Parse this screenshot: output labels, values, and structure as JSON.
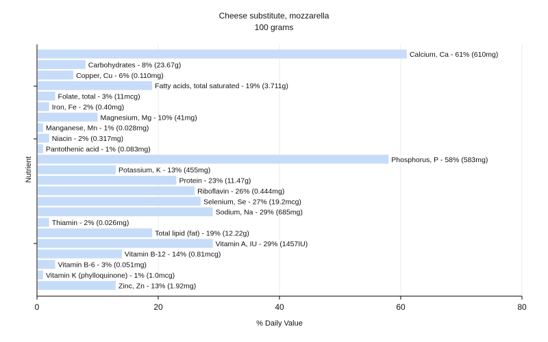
{
  "chart_data": {
    "type": "bar",
    "orientation": "horizontal",
    "title": "Cheese substitute, mozzarella",
    "subtitle": "100 grams",
    "xlabel": "% Daily Value",
    "ylabel": "Nutrient",
    "xlim": [
      0,
      80
    ],
    "xticks": [
      0,
      20,
      40,
      60,
      80
    ],
    "grid": true,
    "bar_color": "#c6dcf9",
    "categories": [
      "Calcium, Ca - 61% (610mg)",
      "Carbohydrates - 8% (23.67g)",
      "Copper, Cu - 6% (0.110mg)",
      "Fatty acids, total saturated - 19% (3.711g)",
      "Folate, total - 3% (11mcg)",
      "Iron, Fe - 2% (0.40mg)",
      "Magnesium, Mg - 10% (41mg)",
      "Manganese, Mn - 1% (0.028mg)",
      "Niacin - 2% (0.317mg)",
      "Pantothenic acid - 1% (0.083mg)",
      "Phosphorus, P - 58% (583mg)",
      "Potassium, K - 13% (455mg)",
      "Protein - 23% (11.47g)",
      "Riboflavin - 26% (0.444mg)",
      "Selenium, Se - 27% (19.2mcg)",
      "Sodium, Na - 29% (685mg)",
      "Thiamin - 2% (0.026mg)",
      "Total lipid (fat) - 19% (12.22g)",
      "Vitamin A, IU - 29% (1457IU)",
      "Vitamin B-12 - 14% (0.81mcg)",
      "Vitamin B-6 - 3% (0.051mg)",
      "Vitamin K (phylloquinone) - 1% (1.0mcg)",
      "Zinc, Zn - 13% (1.92mg)"
    ],
    "values": [
      61,
      8,
      6,
      19,
      3,
      2,
      10,
      1,
      2,
      1,
      58,
      13,
      23,
      26,
      27,
      29,
      2,
      19,
      29,
      14,
      3,
      1,
      13
    ]
  }
}
